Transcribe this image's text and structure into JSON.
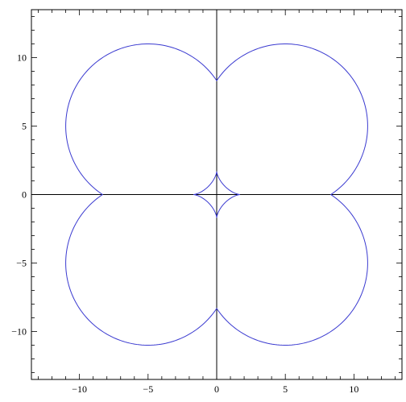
{
  "chart_data": {
    "type": "line",
    "title": "",
    "xlabel": "",
    "ylabel": "",
    "xlim": [
      -13.5,
      13.5
    ],
    "ylim": [
      -13.5,
      13.5
    ],
    "grid": false,
    "legend": "none",
    "axes_through_origin": true,
    "frame": true,
    "x_major_ticks": [
      -10,
      -5,
      0,
      5,
      10
    ],
    "y_major_ticks": [
      -10,
      -5,
      0,
      5,
      10
    ],
    "x_tick_labels": [
      "−10",
      "−5",
      "0",
      "5",
      "10"
    ],
    "y_tick_labels": [
      "−10",
      "−5",
      "0",
      "5",
      "10"
    ],
    "minor_tick_step": 1,
    "series": [
      {
        "color": "#3a3ad0",
        "description_points": [
          [
            0,
            8.3
          ],
          [
            -5,
            11
          ],
          [
            -11,
            5
          ],
          [
            -8.3,
            0
          ],
          [
            -11,
            -5
          ],
          [
            -5,
            -11
          ],
          [
            0,
            -8.3
          ],
          [
            5,
            -11
          ],
          [
            11,
            -5
          ],
          [
            8.3,
            0
          ],
          [
            11,
            5
          ],
          [
            5,
            11
          ]
        ],
        "circle_centers": [
          [
            5,
            5
          ],
          [
            -5,
            5
          ],
          [
            -5,
            -5
          ],
          [
            5,
            -5
          ]
        ],
        "circle_radius": 6,
        "inner_astroid_radius": 1.7
      }
    ]
  }
}
